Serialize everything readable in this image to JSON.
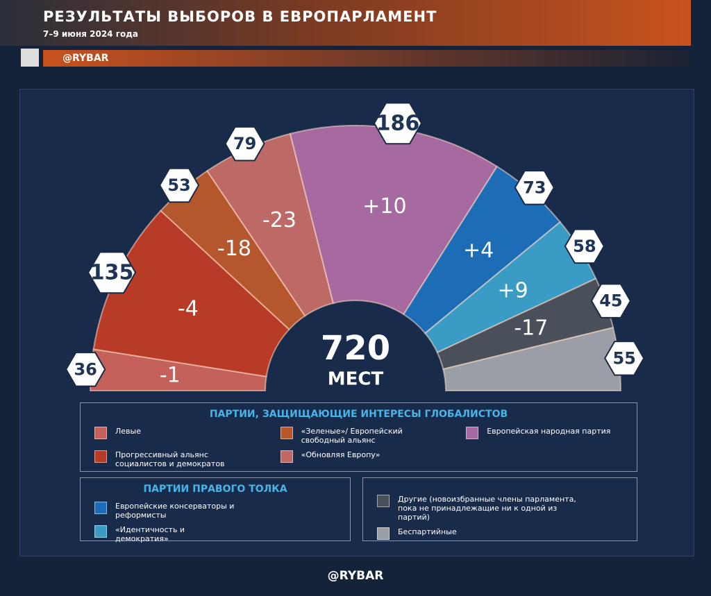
{
  "header": {
    "title": "РЕЗУЛЬТАТЫ ВЫБОРОВ В ЕВРОПАРЛАМЕНТ",
    "subtitle": "7–9 июня 2024 года",
    "brand": "@RYBAR"
  },
  "chart_data": {
    "type": "half-donut",
    "total": 720,
    "total_label": "МЕСТ",
    "groups": [
      {
        "title": "ПАРТИИ, ЗАЩИЩАЮЩИЕ ИНТЕРЕСЫ ГЛОБАЛИСТОВ",
        "parties": [
          {
            "name": "Левые",
            "color": "#c4615a",
            "seats": 36,
            "change": -1,
            "change_label": "-1"
          },
          {
            "name": "Прогрессивный альянс социалистов и демократов",
            "color": "#b83b28",
            "seats": 135,
            "change": -4,
            "change_label": "-4"
          },
          {
            "name": "«Зеленые»/ Европейский свободный альянс",
            "color": "#b5572c",
            "seats": 53,
            "change": -18,
            "change_label": "-18"
          },
          {
            "name": "«Обновляя Европу»",
            "color": "#bd6a66",
            "seats": 79,
            "change": -23,
            "change_label": "-23"
          },
          {
            "name": "Европейская народная партия",
            "color": "#a66aa0",
            "seats": 186,
            "change": 10,
            "change_label": "+10"
          }
        ]
      },
      {
        "title": "ПАРТИИ ПРАВОГО ТОЛКА",
        "parties": [
          {
            "name": "Европейские консерваторы и реформисты",
            "color": "#1d6db6",
            "seats": 73,
            "change": 4,
            "change_label": "+4"
          },
          {
            "name": "«Идентичность и демократия»",
            "color": "#3a9cc4",
            "seats": 58,
            "change": 9,
            "change_label": "+9"
          }
        ]
      },
      {
        "parties": [
          {
            "name": "Другие (новоизбранные члены парламента, пока не принадлежащие ни к одной из партий)",
            "color": "#4a5059",
            "seats": 45,
            "change": -17,
            "change_label": "-17"
          },
          {
            "name": "Беспартийные",
            "color": "#9a9ea6",
            "seats": 55
          }
        ]
      }
    ]
  }
}
